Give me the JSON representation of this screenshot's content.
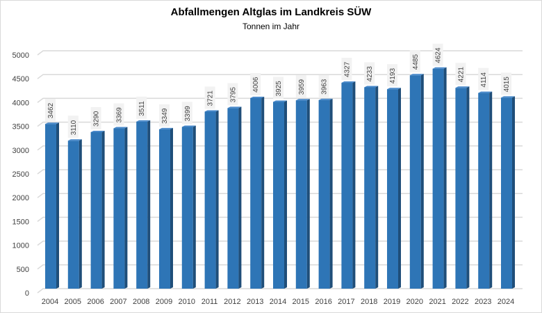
{
  "chart_data": {
    "type": "bar",
    "title": "Abfallmengen Altglas im Landkreis SÜW",
    "subtitle": "Tonnen im Jahr",
    "xlabel": "",
    "ylabel": "",
    "categories": [
      "2004",
      "2005",
      "2006",
      "2007",
      "2008",
      "2009",
      "2010",
      "2011",
      "2012",
      "2013",
      "2014",
      "2015",
      "2016",
      "2017",
      "2018",
      "2019",
      "2020",
      "2021",
      "2022",
      "2023",
      "2024"
    ],
    "values": [
      3462,
      3110,
      3290,
      3369,
      3511,
      3349,
      3399,
      3721,
      3795,
      4006,
      3925,
      3959,
      3963,
      4327,
      4233,
      4193,
      4485,
      4624,
      4221,
      4114,
      4015
    ],
    "ylim": [
      0,
      5000
    ],
    "yticks": [
      0,
      500,
      1000,
      1500,
      2000,
      2500,
      3000,
      3500,
      4000,
      4500,
      5000
    ],
    "grid": true,
    "legend": "none",
    "bar_color": "#2e75b6",
    "bar_side_color": "#1f4e79",
    "data_label_bg": "#f2f2f2"
  }
}
